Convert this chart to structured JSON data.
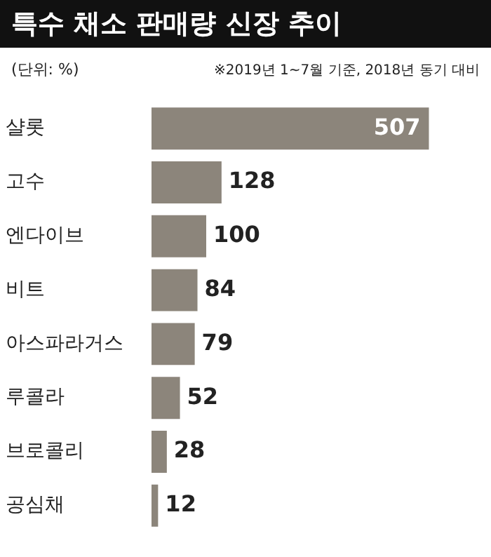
{
  "chart_data": {
    "type": "bar",
    "orientation": "horizontal",
    "title": "특수 채소 판매량 신장 추이",
    "subtitle": "(단위: %)",
    "annotations": [
      "※2019년 1~7월 기준, 2018년 동기 대비"
    ],
    "categories": [
      "샬롯",
      "고수",
      "엔다이브",
      "비트",
      "아스파라거스",
      "루콜라",
      "브로콜리",
      "공심채"
    ],
    "values": [
      507,
      128,
      100,
      84,
      79,
      52,
      28,
      12
    ],
    "color": "#8c857b",
    "data_labels": true
  }
}
